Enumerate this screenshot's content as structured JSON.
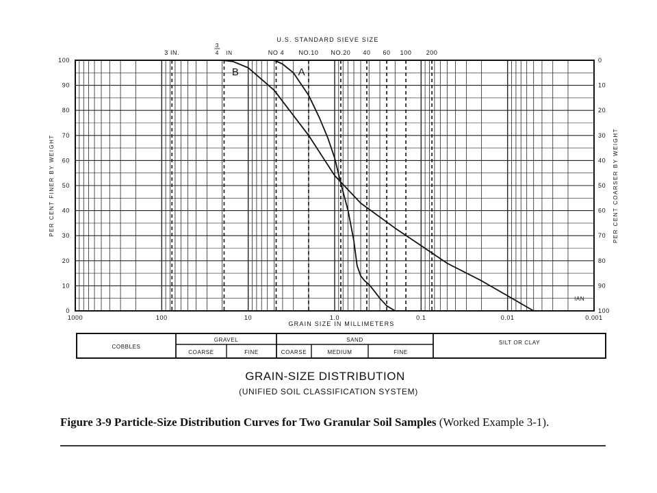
{
  "chart_data": {
    "type": "line",
    "x_scale": "log",
    "x_reversed": true,
    "xlim": [
      1000,
      0.001
    ],
    "ylim": [
      0,
      100
    ],
    "title": "GRAIN-SIZE DISTRIBUTION",
    "subtitle": "(UNIFIED SOIL CLASSIFICATION SYSTEM)",
    "top_axis_title": "U.S. STANDARD SIEVE SIZE",
    "xlabel": "GRAIN SIZE IN MILLIMETERS",
    "ylabel": "PER CENT FINER BY WEIGHT",
    "y2label": "PER CENT COARSER BY WEIGHT",
    "x_ticks": [
      {
        "value": 1000,
        "label": "1000"
      },
      {
        "value": 100,
        "label": "100"
      },
      {
        "value": 10,
        "label": "10"
      },
      {
        "value": 1,
        "label": "1.0"
      },
      {
        "value": 0.1,
        "label": "0.1"
      },
      {
        "value": 0.01,
        "label": "0.01"
      },
      {
        "value": 0.001,
        "label": "0.001"
      }
    ],
    "y_ticks": [
      "0",
      "10",
      "20",
      "30",
      "40",
      "50",
      "60",
      "70",
      "80",
      "90",
      "100"
    ],
    "y2_ticks": [
      "0",
      "10",
      "20",
      "30",
      "40",
      "50",
      "60",
      "70",
      "80",
      "90",
      "100"
    ],
    "sieves": [
      {
        "label": "3 IN.",
        "size_mm": 76.2
      },
      {
        "label": "3/4 IN",
        "size_mm": 19.0
      },
      {
        "label": "NO 4",
        "size_mm": 4.75
      },
      {
        "label": "NO.10",
        "size_mm": 2.0
      },
      {
        "label": "NO.20",
        "size_mm": 0.85
      },
      {
        "label": "40",
        "size_mm": 0.425
      },
      {
        "label": "60",
        "size_mm": 0.25
      },
      {
        "label": "100",
        "size_mm": 0.15
      },
      {
        "label": "200",
        "size_mm": 0.075
      }
    ],
    "grid": true,
    "series": [
      {
        "name": "A",
        "x": [
          5,
          4,
          3,
          2,
          1.5,
          1.2,
          1.0,
          0.85,
          0.7,
          0.6,
          0.55,
          0.5,
          0.45,
          0.4,
          0.35,
          0.3,
          0.25,
          0.2
        ],
        "y": [
          100,
          98.5,
          95,
          86,
          77,
          69,
          61,
          51,
          40,
          28,
          18,
          14,
          12,
          10.5,
          8,
          5,
          2,
          0
        ]
      },
      {
        "name": "B",
        "x": [
          20,
          15,
          10,
          5,
          2,
          1,
          0.5,
          0.2,
          0.1,
          0.05,
          0.02,
          0.01,
          0.005
        ],
        "y": [
          100,
          99.5,
          97,
          88,
          70,
          54,
          43,
          33,
          26,
          19,
          12,
          6,
          0
        ]
      }
    ]
  },
  "labels": {
    "y_title_top_bracket": "",
    "classification_header": [
      "COBBLES",
      "GRAVEL",
      "SAND",
      "SILT OR CLAY"
    ],
    "gravel_sub": [
      "COARSE",
      "FINE"
    ],
    "sand_sub": [
      "COARSE",
      "MEDIUM",
      "FINE"
    ],
    "initials": "IAN"
  },
  "caption": {
    "bold": "Figure 3-9  Particle-Size Distribution Curves for Two Granular Soil Samples",
    "normal": " (Worked Example 3-1)."
  }
}
